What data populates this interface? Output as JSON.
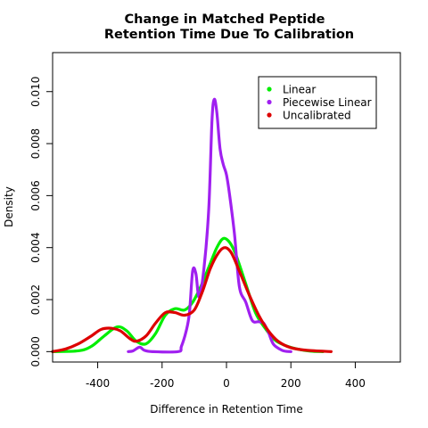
{
  "chart_data": {
    "type": "line",
    "title": [
      "Change in Matched Peptide",
      "Retention Time Due To Calibration"
    ],
    "xlabel": "Difference in Retention Time",
    "ylabel": "Density",
    "xlim": [
      -540,
      540
    ],
    "ylim": [
      -0.0004,
      0.0115
    ],
    "x_ticks": [
      -400,
      -200,
      0,
      200,
      400
    ],
    "x_tick_labels": [
      "-400",
      "-200",
      "0",
      "200",
      "400"
    ],
    "y_ticks": [
      0,
      0.002,
      0.004,
      0.006,
      0.008,
      0.01
    ],
    "y_tick_labels": [
      "0.000",
      "0.002",
      "0.004",
      "0.006",
      "0.008",
      "0.010"
    ],
    "legend_position": "top-right",
    "series": [
      {
        "name": "Linear",
        "color": "#00ee00",
        "points": [
          [
            -540,
            0
          ],
          [
            -460,
            3e-05
          ],
          [
            -420,
            0.0002
          ],
          [
            -380,
            0.0006
          ],
          [
            -340,
            0.00095
          ],
          [
            -310,
            0.0008
          ],
          [
            -280,
            0.0004
          ],
          [
            -250,
            0.0003
          ],
          [
            -220,
            0.0007
          ],
          [
            -190,
            0.0014
          ],
          [
            -160,
            0.00165
          ],
          [
            -130,
            0.0016
          ],
          [
            -105,
            0.0019
          ],
          [
            -80,
            0.0025
          ],
          [
            -50,
            0.0034
          ],
          [
            -30,
            0.004
          ],
          [
            -10,
            0.00435
          ],
          [
            10,
            0.0042
          ],
          [
            30,
            0.0037
          ],
          [
            60,
            0.0026
          ],
          [
            90,
            0.0015
          ],
          [
            120,
            0.0009
          ],
          [
            150,
            0.00045
          ],
          [
            180,
            0.00025
          ],
          [
            220,
            0.0001
          ],
          [
            260,
            2e-05
          ],
          [
            300,
            0
          ]
        ]
      },
      {
        "name": "Piecewise Linear",
        "color": "#a020f0",
        "points": [
          [
            -305,
            0
          ],
          [
            -290,
            3e-05
          ],
          [
            -270,
            0.00017
          ],
          [
            -255,
            5e-05
          ],
          [
            -230,
            0
          ],
          [
            -150,
            0
          ],
          [
            -140,
            0.0002
          ],
          [
            -125,
            0.0008
          ],
          [
            -115,
            0.0015
          ],
          [
            -105,
            0.0031
          ],
          [
            -95,
            0.003
          ],
          [
            -85,
            0.0021
          ],
          [
            -70,
            0.0032
          ],
          [
            -55,
            0.0055
          ],
          [
            -45,
            0.0089
          ],
          [
            -38,
            0.0097
          ],
          [
            -30,
            0.0092
          ],
          [
            -20,
            0.0078
          ],
          [
            -10,
            0.0072
          ],
          [
            0,
            0.0068
          ],
          [
            10,
            0.006
          ],
          [
            25,
            0.0045
          ],
          [
            40,
            0.0025
          ],
          [
            60,
            0.0019
          ],
          [
            80,
            0.0012
          ],
          [
            100,
            0.00115
          ],
          [
            115,
            0.0011
          ],
          [
            130,
            0.00075
          ],
          [
            145,
            0.0003
          ],
          [
            165,
            0.0001
          ],
          [
            180,
            2e-05
          ],
          [
            200,
            0
          ]
        ]
      },
      {
        "name": "Uncalibrated",
        "color": "#dd0000",
        "points": [
          [
            -540,
            0
          ],
          [
            -500,
            0.0001
          ],
          [
            -460,
            0.0003
          ],
          [
            -420,
            0.0006
          ],
          [
            -390,
            0.00085
          ],
          [
            -360,
            0.0009
          ],
          [
            -330,
            0.0008
          ],
          [
            -300,
            0.0005
          ],
          [
            -280,
            0.0004
          ],
          [
            -250,
            0.0006
          ],
          [
            -220,
            0.0011
          ],
          [
            -190,
            0.0015
          ],
          [
            -160,
            0.0015
          ],
          [
            -130,
            0.0014
          ],
          [
            -100,
            0.0016
          ],
          [
            -75,
            0.0023
          ],
          [
            -50,
            0.0032
          ],
          [
            -25,
            0.0038
          ],
          [
            -5,
            0.004
          ],
          [
            15,
            0.0038
          ],
          [
            40,
            0.0031
          ],
          [
            70,
            0.0022
          ],
          [
            100,
            0.0014
          ],
          [
            130,
            0.0008
          ],
          [
            160,
            0.0004
          ],
          [
            200,
            0.00015
          ],
          [
            250,
            5e-05
          ],
          [
            325,
            0
          ]
        ]
      }
    ]
  }
}
